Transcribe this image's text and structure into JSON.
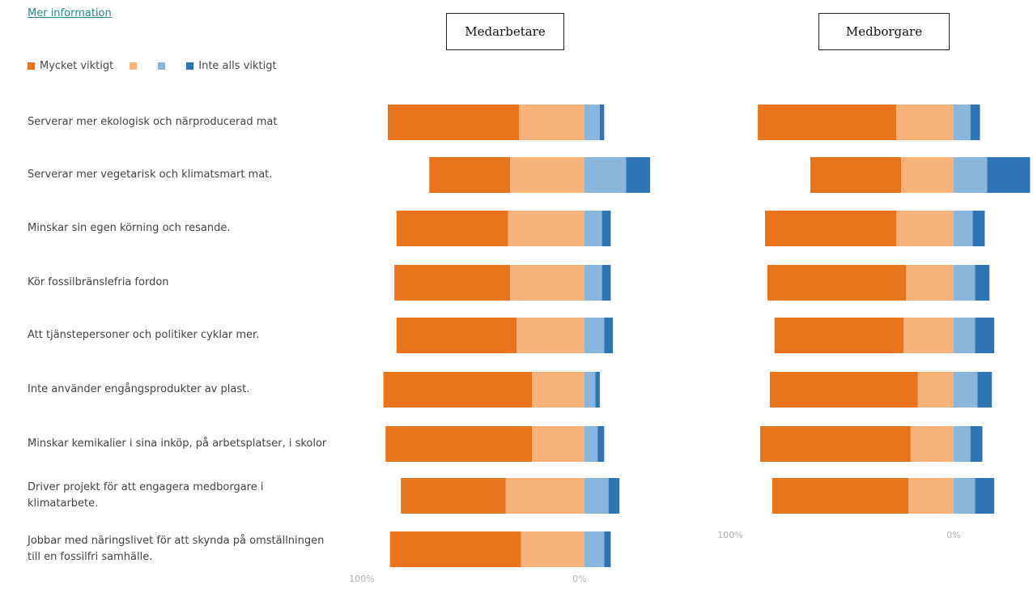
{
  "header": {
    "more_info_link": "Mer information"
  },
  "legend": [
    {
      "label": "Mycket viktigt",
      "color": "#e8741e"
    },
    {
      "label": "",
      "color": "#f7b27a"
    },
    {
      "label": "",
      "color": "#8ab6dd"
    },
    {
      "label": "Inte alls viktigt",
      "color": "#2f75b5"
    }
  ],
  "chart_data": [
    {
      "type": "bar",
      "orientation": "horizontal-diverging",
      "title": "Medarbetare",
      "axis": {
        "left_label": "100%",
        "right_label": "0%"
      },
      "categories": [
        "Serverar mer ekologisk och närproducerad mat",
        "Serverar mer vegetarisk och klimatsmart mat.",
        "Minskar sin egen körning och resande.",
        "Kör fossilbränslefria fordon",
        "Att tjänstepersoner och politiker cyklar mer.",
        "Inte använder engångsprodukter av plast.",
        "Minskar kemikalier i sina inköp, på arbetsplatser, i skolor",
        "Driver projekt för att engagera medborgare i klimatarbete.",
        "Jobbar med näringslivet för att skynda på omställningen till en fossilfri samhälle."
      ],
      "series": [
        {
          "name": "Mycket viktigt",
          "values": [
            60,
            37,
            51,
            53,
            55,
            68,
            67,
            48,
            60
          ]
        },
        {
          "name": "",
          "values": [
            30,
            34,
            35,
            34,
            31,
            24,
            24,
            36,
            29
          ]
        },
        {
          "name": "",
          "values": [
            7,
            19,
            8,
            8,
            9,
            5,
            6,
            11,
            9
          ]
        },
        {
          "name": "Inte alls viktigt",
          "values": [
            2,
            11,
            4,
            4,
            4,
            2,
            3,
            5,
            3
          ]
        }
      ]
    },
    {
      "type": "bar",
      "orientation": "horizontal-diverging",
      "title": "Medborgare",
      "axis": {
        "left_label": "100%",
        "right_label": "0%"
      },
      "categories": [
        "Serverar mer ekologisk och närproducerad mat",
        "Serverar mer vegetarisk och klimatsmart mat.",
        "Minskar sin egen körning och resande.",
        "Kör fossilbränslefria fordon",
        "Att tjänstepersoner och politiker cyklar mer.",
        "Inte använder engångsprodukter av plast.",
        "Minskar kemikalier i sina inköp, på arbetsplatser, i skolor",
        "Driver projekt för att engagera medborgare i klimatarbete."
      ],
      "series": [
        {
          "name": "Mycket viktigt",
          "values": [
            58,
            38,
            55,
            58,
            54,
            62,
            63,
            57
          ]
        },
        {
          "name": "",
          "values": [
            24,
            22,
            24,
            20,
            21,
            15,
            18,
            19
          ]
        },
        {
          "name": "",
          "values": [
            7,
            14,
            8,
            9,
            9,
            10,
            7,
            9
          ]
        },
        {
          "name": "Inte alls viktigt",
          "values": [
            4,
            18,
            5,
            6,
            8,
            6,
            5,
            8
          ]
        }
      ]
    }
  ]
}
